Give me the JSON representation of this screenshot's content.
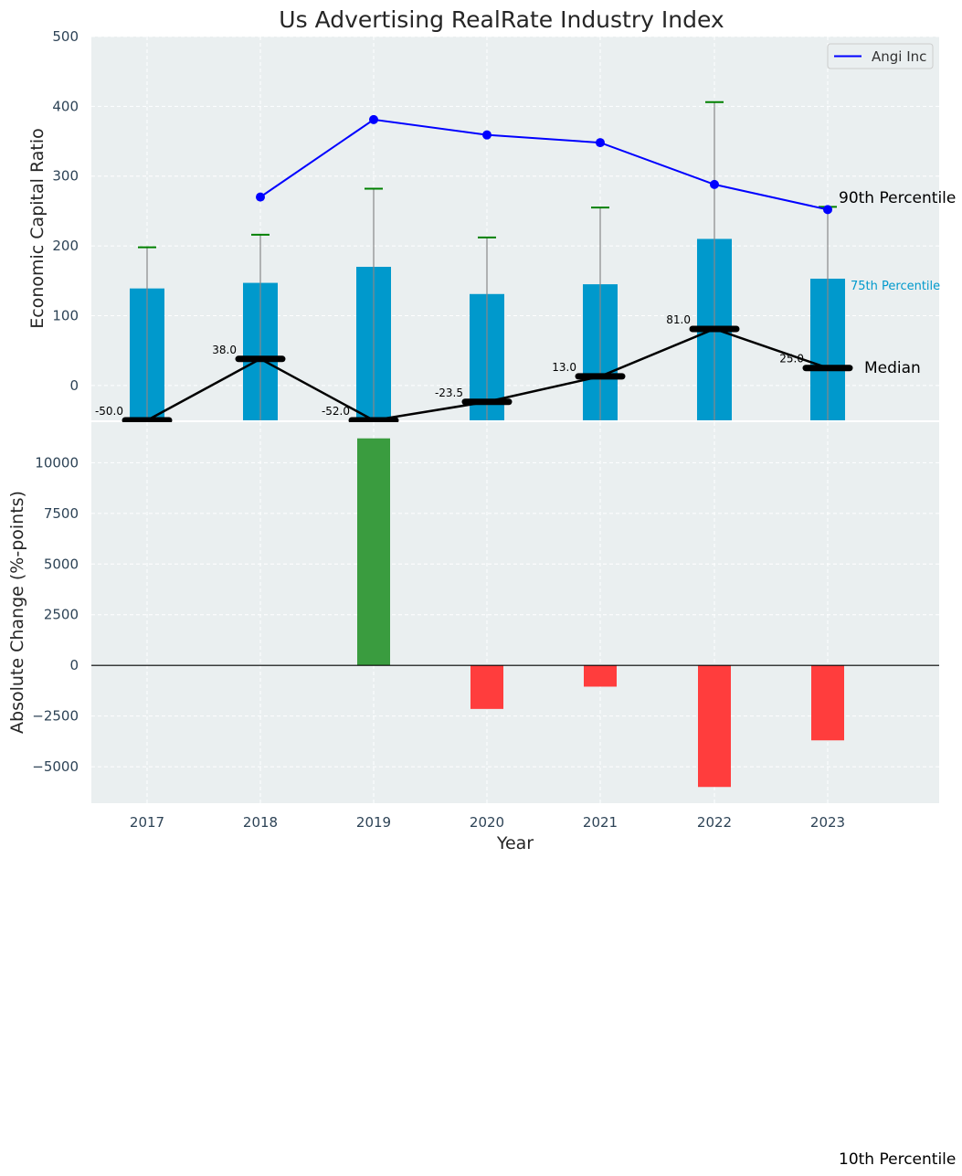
{
  "chart_data": [
    {
      "type": "bar",
      "title": "Us Advertising RealRate Industry Index",
      "xlabel": "",
      "ylabel": "Economic Capital Ratio",
      "ylim": [
        -50,
        500
      ],
      "yticks": [
        0,
        100,
        200,
        300,
        400,
        500
      ],
      "categories": [
        "2017",
        "2018",
        "2019",
        "2020",
        "2021",
        "2022",
        "2023"
      ],
      "grid": true,
      "legend": {
        "position": "top-right",
        "entries": [
          "Angi Inc"
        ]
      },
      "series": [
        {
          "name": "75th Percentile",
          "kind": "bar",
          "color": "#0099cc",
          "values": [
            139,
            147,
            170,
            131,
            145,
            210,
            153
          ]
        },
        {
          "name": "90th Percentile",
          "kind": "errorbar-cap",
          "color": "#008000",
          "values": [
            198,
            216,
            282,
            212,
            255,
            406,
            256
          ]
        },
        {
          "name": "Median",
          "kind": "line",
          "color": "#000000",
          "values": [
            -50.0,
            38.0,
            -52.0,
            -23.5,
            13.0,
            81.0,
            25.0
          ],
          "labels": [
            "-50.0",
            "38.0",
            "-52.0",
            "-23.5",
            "13.0",
            "81.0",
            "25.0"
          ]
        },
        {
          "name": "Angi Inc",
          "kind": "line",
          "color": "#0000ff",
          "values": [
            null,
            270,
            381,
            359,
            348,
            288,
            252
          ]
        }
      ],
      "annotations": {
        "p90": "90th Percentile",
        "p75": "75th Percentile",
        "median": "Median",
        "p10": "10th Percentile"
      }
    },
    {
      "type": "bar",
      "title": "",
      "xlabel": "Year",
      "ylabel": "Absolute Change (%-points)",
      "ylim": [
        -6800,
        12000
      ],
      "yticks": [
        -5000,
        -2500,
        0,
        2500,
        5000,
        7500,
        10000
      ],
      "ytick_labels": [
        "−5000",
        "−2500",
        "0",
        "2500",
        "5000",
        "7500",
        "10000"
      ],
      "categories": [
        "2017",
        "2018",
        "2019",
        "2020",
        "2021",
        "2022",
        "2023"
      ],
      "grid": true,
      "series": [
        {
          "name": "Absolute Change",
          "values": [
            null,
            null,
            11200,
            -2150,
            -1050,
            -6000,
            -3700
          ]
        }
      ],
      "colors": {
        "positive": "#3a9c3f",
        "negative": "#ff3d3d"
      }
    }
  ]
}
